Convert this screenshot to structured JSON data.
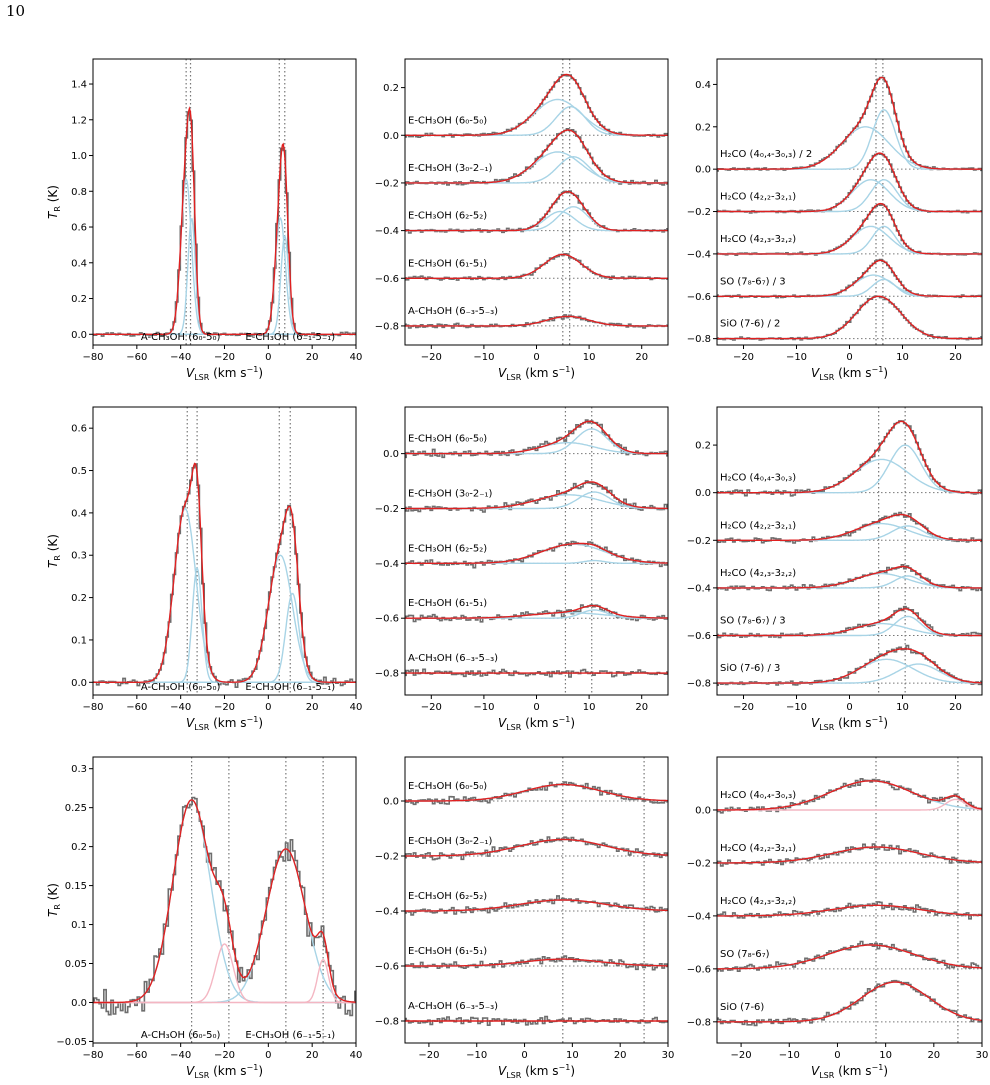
{
  "page": {
    "number": "10"
  },
  "style": {
    "fit": "#e02020",
    "component": "#a8d4e6",
    "component_alt": "#f4b6c2",
    "spectrum": "#6e6e6e",
    "marker": "#777777"
  },
  "chart_data": [
    {
      "type": "line",
      "row": 0,
      "col": 0,
      "xlim": [
        -80,
        40
      ],
      "ylim": [
        -0.06,
        1.54
      ],
      "xticks": [
        -80,
        -60,
        -40,
        -20,
        0,
        20,
        40
      ],
      "yticks": [
        0.0,
        0.2,
        0.4,
        0.6,
        0.8,
        1.0,
        1.2,
        1.4
      ],
      "xlabel": "V_LSR (km s⁻¹)",
      "ylabel": "T_R (K)",
      "vlines": [
        -37.5,
        -35.5,
        5,
        7.5
      ],
      "offset": 0,
      "lines": [
        {
          "label": "",
          "offset": 0,
          "noise": 0.01,
          "text_pos": [],
          "components": [
            {
              "center": -37.5,
              "sigma": 2.4,
              "amp": 0.87
            },
            {
              "center": -35.0,
              "sigma": 1.7,
              "amp": 0.65
            },
            {
              "center": 5.5,
              "sigma": 2.3,
              "amp": 0.65
            },
            {
              "center": 7.5,
              "sigma": 1.8,
              "amp": 0.55
            }
          ]
        }
      ],
      "bottom_labels": [
        {
          "text": "A-CH₃OH (6₀-5₀)",
          "x": -40
        },
        {
          "text": "E-CH₃OH (6₋₁-5₋₁)",
          "x": 10
        }
      ]
    },
    {
      "type": "line",
      "row": 0,
      "col": 1,
      "xlim": [
        -25,
        25
      ],
      "ylim": [
        -0.88,
        0.32
      ],
      "xticks": [
        -20,
        -10,
        0,
        10,
        20
      ],
      "yticks": [
        -0.8,
        -0.6,
        -0.4,
        -0.2,
        0.0,
        0.2
      ],
      "xlabel": "V_LSR (km s⁻¹)",
      "ylabel": "",
      "vlines": [
        5,
        6.3
      ],
      "lines": [
        {
          "label": "E-CH₃OH (6₀-5₀)",
          "offset": 0.0,
          "noise": 0.008,
          "components": [
            {
              "center": 4,
              "sigma": 4.5,
              "amp": 0.15
            },
            {
              "center": 6.5,
              "sigma": 2.8,
              "amp": 0.12
            }
          ]
        },
        {
          "label": "E-CH₃OH (3₀-2₋₁)",
          "offset": -0.2,
          "noise": 0.008,
          "components": [
            {
              "center": 4,
              "sigma": 4.5,
              "amp": 0.13
            },
            {
              "center": 7,
              "sigma": 3.0,
              "amp": 0.11
            }
          ]
        },
        {
          "label": "E-CH₃OH (6₂-5₂)",
          "offset": -0.4,
          "noise": 0.008,
          "components": [
            {
              "center": 4.5,
              "sigma": 2.8,
              "amp": 0.08
            },
            {
              "center": 7,
              "sigma": 2.8,
              "amp": 0.1
            }
          ]
        },
        {
          "label": "E-CH₃OH (6₁-5₁)",
          "offset": -0.6,
          "noise": 0.008,
          "components": [
            {
              "center": 5,
              "sigma": 3.5,
              "amp": 0.1
            }
          ]
        },
        {
          "label": "A-CH₃OH (6₋₃-5₋₃)",
          "offset": -0.8,
          "noise": 0.008,
          "components": [
            {
              "center": 6,
              "sigma": 4.0,
              "amp": 0.04
            }
          ]
        }
      ]
    },
    {
      "type": "line",
      "row": 0,
      "col": 2,
      "xlim": [
        -25,
        25
      ],
      "ylim": [
        -0.83,
        0.52
      ],
      "xticks": [
        -20,
        -10,
        0,
        10,
        20
      ],
      "yticks": [
        -0.8,
        -0.6,
        -0.4,
        -0.2,
        0.0,
        0.2,
        0.4
      ],
      "xlabel": "V_LSR (km s⁻¹)",
      "ylabel": "",
      "vlines": [
        5,
        6.3
      ],
      "lines": [
        {
          "label": "H₂CO (4₀,₄-3₀,₃) / 2",
          "offset": 0.0,
          "noise": 0.006,
          "components": [
            {
              "center": 3,
              "sigma": 4.5,
              "amp": 0.2
            },
            {
              "center": 6.5,
              "sigma": 2.2,
              "amp": 0.28
            }
          ]
        },
        {
          "label": "H₂CO (4₂,₂-3₂,₁)",
          "offset": -0.2,
          "noise": 0.006,
          "components": [
            {
              "center": 4,
              "sigma": 3.5,
              "amp": 0.15
            },
            {
              "center": 6.5,
              "sigma": 2.5,
              "amp": 0.15
            }
          ]
        },
        {
          "label": "H₂CO (4₂,₃-3₂,₂)",
          "offset": -0.4,
          "noise": 0.006,
          "components": [
            {
              "center": 4,
              "sigma": 3.5,
              "amp": 0.13
            },
            {
              "center": 6.5,
              "sigma": 2.2,
              "amp": 0.13
            }
          ]
        },
        {
          "label": "SO (7₈-6₇) / 3",
          "offset": -0.6,
          "noise": 0.006,
          "components": [
            {
              "center": 4.5,
              "sigma": 3.5,
              "amp": 0.1
            },
            {
              "center": 6.5,
              "sigma": 2.2,
              "amp": 0.08
            }
          ]
        },
        {
          "label": "SiO (7-6) / 2",
          "offset": -0.8,
          "noise": 0.006,
          "components": [
            {
              "center": 5.5,
              "sigma": 4.2,
              "amp": 0.2
            }
          ]
        }
      ]
    },
    {
      "type": "line",
      "row": 1,
      "col": 0,
      "xlim": [
        -80,
        40
      ],
      "ylim": [
        -0.03,
        0.65
      ],
      "xticks": [
        -80,
        -60,
        -40,
        -20,
        0,
        20,
        40
      ],
      "yticks": [
        0.0,
        0.1,
        0.2,
        0.3,
        0.4,
        0.5,
        0.6
      ],
      "xlabel": "V_LSR (km s⁻¹)",
      "ylabel": "T_R (K)",
      "vlines": [
        -37,
        -32.5,
        5,
        10
      ],
      "lines": [
        {
          "label": "",
          "offset": 0,
          "noise": 0.008,
          "components": [
            {
              "center": -38,
              "sigma": 5.0,
              "amp": 0.41
            },
            {
              "center": -32.5,
              "sigma": 2.2,
              "amp": 0.27
            },
            {
              "center": 5.5,
              "sigma": 5.5,
              "amp": 0.3
            },
            {
              "center": 11,
              "sigma": 3.0,
              "amp": 0.21
            }
          ]
        }
      ],
      "bottom_labels": [
        {
          "text": "A-CH₃OH (6₀-5₀)",
          "x": -40
        },
        {
          "text": "E-CH₃OH (6₋₁-5₋₁)",
          "x": 10
        }
      ]
    },
    {
      "type": "line",
      "row": 1,
      "col": 1,
      "xlim": [
        -25,
        25
      ],
      "ylim": [
        -0.88,
        0.17
      ],
      "xticks": [
        -20,
        -10,
        0,
        10,
        20
      ],
      "yticks": [
        -0.8,
        -0.6,
        -0.4,
        -0.2,
        0.0
      ],
      "xlabel": "V_LSR (km s⁻¹)",
      "ylabel": "",
      "vlines": [
        5.5,
        10.5
      ],
      "lines": [
        {
          "label": "E-CH₃OH (6₀-5₀)",
          "offset": 0.0,
          "noise": 0.012,
          "components": [
            {
              "center": 6,
              "sigma": 5,
              "amp": 0.04
            },
            {
              "center": 10.5,
              "sigma": 3.0,
              "amp": 0.09
            }
          ]
        },
        {
          "label": "E-CH₃OH (3₀-2₋₁)",
          "offset": -0.2,
          "noise": 0.012,
          "components": [
            {
              "center": 6,
              "sigma": 6,
              "amp": 0.05
            },
            {
              "center": 11,
              "sigma": 3.0,
              "amp": 0.06
            }
          ]
        },
        {
          "label": "E-CH₃OH (6₂-5₂)",
          "offset": -0.4,
          "noise": 0.012,
          "components": [
            {
              "center": 7,
              "sigma": 6,
              "amp": 0.07
            },
            {
              "center": 11,
              "sigma": 2.0,
              "amp": 0.01
            }
          ]
        },
        {
          "label": "E-CH₃OH (6₁-5₁)",
          "offset": -0.6,
          "noise": 0.012,
          "components": [
            {
              "center": 6,
              "sigma": 7,
              "amp": 0.02
            },
            {
              "center": 11,
              "sigma": 2.5,
              "amp": 0.03
            }
          ]
        },
        {
          "label": "A-CH₃OH (6₋₃-5₋₃)",
          "offset": -0.8,
          "noise": 0.012,
          "components": []
        }
      ]
    },
    {
      "type": "line",
      "row": 1,
      "col": 2,
      "xlim": [
        -25,
        25
      ],
      "ylim": [
        -0.85,
        0.36
      ],
      "xticks": [
        -20,
        -10,
        0,
        10,
        20
      ],
      "yticks": [
        -0.8,
        -0.6,
        -0.4,
        -0.2,
        0.0,
        0.2
      ],
      "xlabel": "V_LSR (km s⁻¹)",
      "ylabel": "",
      "vlines": [
        5.5,
        10.5
      ],
      "lines": [
        {
          "label": "H₂CO (4₀,₄-3₀,₃)",
          "offset": 0.0,
          "noise": 0.01,
          "components": [
            {
              "center": 6,
              "sigma": 5,
              "amp": 0.14
            },
            {
              "center": 10.5,
              "sigma": 3.0,
              "amp": 0.2
            }
          ]
        },
        {
          "label": "H₂CO (4₂,₂-3₂,₁)",
          "offset": -0.2,
          "noise": 0.01,
          "components": [
            {
              "center": 6,
              "sigma": 5,
              "amp": 0.07
            },
            {
              "center": 11,
              "sigma": 3.0,
              "amp": 0.06
            }
          ]
        },
        {
          "label": "H₂CO (4₂,₃-3₂,₂)",
          "offset": -0.4,
          "noise": 0.01,
          "components": [
            {
              "center": 6,
              "sigma": 5,
              "amp": 0.06
            },
            {
              "center": 11,
              "sigma": 2.5,
              "amp": 0.05
            }
          ]
        },
        {
          "label": "SO (7₈-6₇) / 3",
          "offset": -0.6,
          "noise": 0.01,
          "components": [
            {
              "center": 6,
              "sigma": 5,
              "amp": 0.05
            },
            {
              "center": 11,
              "sigma": 2.5,
              "amp": 0.08
            }
          ]
        },
        {
          "label": "SiO (7-6) / 3",
          "offset": -0.8,
          "noise": 0.01,
          "components": [
            {
              "center": 7,
              "sigma": 5,
              "amp": 0.1
            },
            {
              "center": 13,
              "sigma": 4.0,
              "amp": 0.08
            }
          ]
        }
      ]
    },
    {
      "type": "line",
      "row": 2,
      "col": 0,
      "xlim": [
        -80,
        40
      ],
      "ylim": [
        -0.052,
        0.315
      ],
      "xticks": [
        -80,
        -60,
        -40,
        -20,
        0,
        20,
        40
      ],
      "yticks": [
        -0.05,
        0.0,
        0.05,
        0.1,
        0.15,
        0.2,
        0.25,
        0.3
      ],
      "xlabel": "V_LSR (km s⁻¹)",
      "ylabel": "T_R (K)",
      "vlines": [
        -35,
        -18,
        8,
        25
      ],
      "lines": [
        {
          "label": "",
          "offset": 0,
          "noise": 0.018,
          "components": [
            {
              "center": -35,
              "sigma": 8.5,
              "amp": 0.26
            },
            {
              "center": 8,
              "sigma": 9,
              "amp": 0.197
            }
          ],
          "alt_components": [
            {
              "center": -20,
              "sigma": 4,
              "amp": 0.075
            },
            {
              "center": 25,
              "sigma": 2.5,
              "amp": 0.055
            }
          ]
        }
      ],
      "bottom_labels": [
        {
          "text": "A-CH₃OH (6₀-5₀)",
          "x": -40
        },
        {
          "text": "E-CH₃OH (6₋₁-5₋₁)",
          "x": 10
        }
      ]
    },
    {
      "type": "line",
      "row": 2,
      "col": 1,
      "xlim": [
        -25,
        30
      ],
      "ylim": [
        -0.88,
        0.16
      ],
      "xticks": [
        -20,
        -10,
        0,
        10,
        20,
        30
      ],
      "yticks": [
        -0.8,
        -0.6,
        -0.4,
        -0.2,
        0.0
      ],
      "xlabel": "V_LSR (km s⁻¹)",
      "ylabel": "",
      "vlines": [
        8,
        25
      ],
      "lines": [
        {
          "label": "E-CH₃OH (6₀-5₀)",
          "offset": 0.0,
          "noise": 0.012,
          "components": [
            {
              "center": 8,
              "sigma": 8,
              "amp": 0.06
            }
          ]
        },
        {
          "label": "E-CH₃OH (3₀-2₋₁)",
          "offset": -0.2,
          "noise": 0.012,
          "components": [
            {
              "center": 8,
              "sigma": 9,
              "amp": 0.06
            }
          ]
        },
        {
          "label": "E-CH₃OH (6₂-5₂)",
          "offset": -0.4,
          "noise": 0.012,
          "components": [
            {
              "center": 8,
              "sigma": 9,
              "amp": 0.04
            }
          ]
        },
        {
          "label": "E-CH₃OH (6₁-5₁)",
          "offset": -0.6,
          "noise": 0.012,
          "components": [
            {
              "center": 8,
              "sigma": 8,
              "amp": 0.025
            }
          ]
        },
        {
          "label": "A-CH₃OH (6₋₃-5₋₃)",
          "offset": -0.8,
          "noise": 0.012,
          "components": []
        }
      ]
    },
    {
      "type": "line",
      "row": 2,
      "col": 2,
      "xlim": [
        -25,
        30
      ],
      "ylim": [
        -0.88,
        0.2
      ],
      "xticks": [
        -20,
        -10,
        0,
        10,
        20,
        30
      ],
      "yticks": [
        -0.8,
        -0.6,
        -0.4,
        -0.2,
        0.0
      ],
      "xlabel": "V_LSR (km s⁻¹)",
      "ylabel": "",
      "vlines": [
        8,
        25
      ],
      "lines": [
        {
          "label": "H₂CO (4₀,₄-3₀,₃)",
          "offset": 0.0,
          "noise": 0.012,
          "components": [
            {
              "center": 7,
              "sigma": 8.5,
              "amp": 0.11
            }
          ],
          "alt_components": [
            {
              "center": 24.5,
              "sigma": 2.0,
              "amp": 0.04
            }
          ]
        },
        {
          "label": "H₂CO (4₂,₂-3₂,₁)",
          "offset": -0.2,
          "noise": 0.012,
          "components": [
            {
              "center": 8,
              "sigma": 9,
              "amp": 0.06
            }
          ]
        },
        {
          "label": "H₂CO (4₂,₃-3₂,₂)",
          "offset": -0.4,
          "noise": 0.012,
          "components": [
            {
              "center": 8,
              "sigma": 9,
              "amp": 0.04
            }
          ]
        },
        {
          "label": "SO (7₈-6₇)",
          "offset": -0.6,
          "noise": 0.012,
          "components": [
            {
              "center": 7,
              "sigma": 9,
              "amp": 0.09
            }
          ]
        },
        {
          "label": "SiO (7-6)",
          "offset": -0.8,
          "noise": 0.012,
          "components": [
            {
              "center": 12,
              "sigma": 7,
              "amp": 0.15
            }
          ]
        }
      ]
    }
  ]
}
